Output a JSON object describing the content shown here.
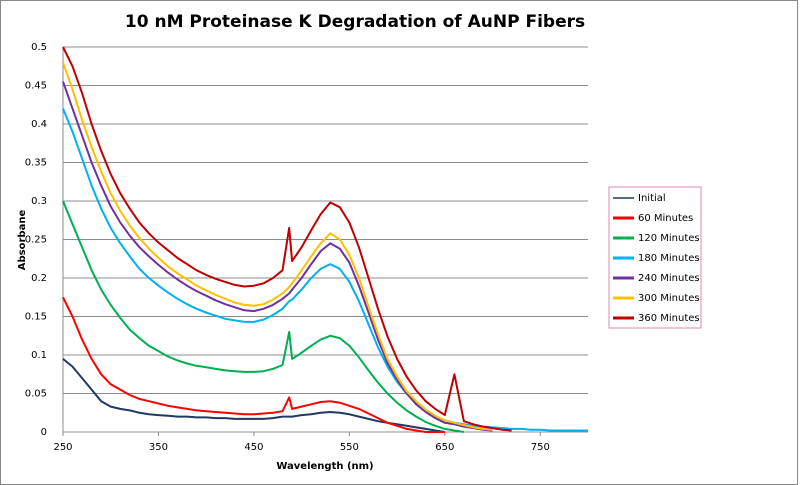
{
  "chart_data": {
    "type": "line",
    "title": "10 nM Proteinase K Degradation of AuNP Fibers",
    "x_label": "Wavelength (nm)",
    "y_label": "Absorbane",
    "x": [
      250,
      260,
      270,
      280,
      290,
      300,
      310,
      320,
      330,
      340,
      350,
      360,
      370,
      380,
      390,
      400,
      410,
      420,
      430,
      440,
      450,
      460,
      470,
      480,
      487,
      490,
      500,
      510,
      520,
      530,
      540,
      550,
      560,
      570,
      580,
      590,
      600,
      610,
      620,
      630,
      640,
      650,
      660,
      670,
      680,
      690,
      700,
      710,
      720,
      730,
      740,
      750,
      760,
      770,
      780,
      790,
      800
    ],
    "xlim": [
      250,
      800
    ],
    "xticks": [
      250,
      350,
      450,
      550,
      650,
      750
    ],
    "ylim": [
      0,
      0.5
    ],
    "yticks": [
      0,
      0.05,
      0.1,
      0.15,
      0.2,
      0.25,
      0.3,
      0.35,
      0.4,
      0.45,
      0.5
    ],
    "grid": true,
    "legend": "right",
    "series": [
      {
        "name": "Initial",
        "color": "#1f3864",
        "values": [
          0.095,
          0.085,
          0.07,
          0.055,
          0.04,
          0.033,
          0.03,
          0.028,
          0.025,
          0.023,
          0.022,
          0.021,
          0.02,
          0.02,
          0.019,
          0.019,
          0.018,
          0.018,
          0.017,
          0.017,
          0.017,
          0.017,
          0.018,
          0.02,
          0.02,
          0.02,
          0.022,
          0.023,
          0.025,
          0.026,
          0.025,
          0.023,
          0.02,
          0.017,
          0.014,
          0.012,
          0.01,
          0.008,
          0.006,
          0.004,
          0.002,
          0,
          null,
          null,
          null,
          null,
          null,
          null,
          null,
          null,
          null,
          null,
          null,
          null,
          null,
          null,
          null
        ]
      },
      {
        "name": "60 Minutes",
        "color": "#ff0000",
        "values": [
          0.175,
          0.15,
          0.12,
          0.095,
          0.075,
          0.062,
          0.055,
          0.048,
          0.043,
          0.04,
          0.037,
          0.034,
          0.032,
          0.03,
          0.028,
          0.027,
          0.026,
          0.025,
          0.024,
          0.023,
          0.023,
          0.024,
          0.025,
          0.027,
          0.045,
          0.03,
          0.033,
          0.036,
          0.039,
          0.04,
          0.038,
          0.034,
          0.03,
          0.024,
          0.018,
          0.012,
          0.008,
          0.004,
          0.002,
          0,
          0,
          0,
          null,
          null,
          null,
          null,
          null,
          null,
          null,
          null,
          null,
          null,
          null,
          null,
          null,
          null,
          null
        ]
      },
      {
        "name": "120 Minutes",
        "color": "#00b050",
        "values": [
          0.3,
          0.27,
          0.24,
          0.21,
          0.185,
          0.165,
          0.148,
          0.133,
          0.122,
          0.112,
          0.105,
          0.098,
          0.093,
          0.089,
          0.086,
          0.084,
          0.082,
          0.08,
          0.079,
          0.078,
          0.078,
          0.079,
          0.082,
          0.087,
          0.13,
          0.095,
          0.103,
          0.112,
          0.12,
          0.125,
          0.122,
          0.112,
          0.097,
          0.08,
          0.064,
          0.05,
          0.038,
          0.028,
          0.02,
          0.013,
          0.008,
          0.004,
          0.002,
          0,
          null,
          null,
          null,
          null,
          null,
          null,
          null,
          null,
          null,
          null,
          null,
          null,
          null
        ]
      },
      {
        "name": "180 Minutes",
        "color": "#00b0f0",
        "values": [
          0.42,
          0.39,
          0.355,
          0.32,
          0.29,
          0.265,
          0.245,
          0.228,
          0.212,
          0.2,
          0.19,
          0.181,
          0.173,
          0.166,
          0.16,
          0.155,
          0.151,
          0.147,
          0.145,
          0.143,
          0.143,
          0.146,
          0.152,
          0.16,
          0.17,
          0.172,
          0.185,
          0.2,
          0.212,
          0.218,
          0.212,
          0.195,
          0.17,
          0.14,
          0.11,
          0.085,
          0.065,
          0.05,
          0.038,
          0.028,
          0.02,
          0.015,
          0.012,
          0.01,
          0.008,
          0.007,
          0.006,
          0.005,
          0.004,
          0.004,
          0.003,
          0.003,
          0.002,
          0.002,
          0.002,
          0.002,
          0.002
        ]
      },
      {
        "name": "240 Minutes",
        "color": "#7030a0",
        "values": [
          0.455,
          0.42,
          0.385,
          0.35,
          0.32,
          0.293,
          0.272,
          0.255,
          0.24,
          0.228,
          0.217,
          0.207,
          0.198,
          0.19,
          0.183,
          0.177,
          0.171,
          0.166,
          0.162,
          0.158,
          0.157,
          0.16,
          0.165,
          0.173,
          0.18,
          0.185,
          0.2,
          0.218,
          0.235,
          0.245,
          0.238,
          0.22,
          0.19,
          0.155,
          0.12,
          0.09,
          0.068,
          0.05,
          0.036,
          0.026,
          0.018,
          0.012,
          0.01,
          0.007,
          0.005,
          0.003,
          0.002,
          null,
          null,
          null,
          null,
          null,
          null,
          null,
          null,
          null,
          null
        ]
      },
      {
        "name": "300 Minutes",
        "color": "#ffc000",
        "values": [
          0.48,
          0.445,
          0.405,
          0.37,
          0.338,
          0.31,
          0.287,
          0.268,
          0.252,
          0.238,
          0.226,
          0.215,
          0.206,
          0.198,
          0.19,
          0.184,
          0.178,
          0.173,
          0.168,
          0.165,
          0.164,
          0.166,
          0.172,
          0.18,
          0.188,
          0.193,
          0.21,
          0.228,
          0.245,
          0.258,
          0.25,
          0.23,
          0.2,
          0.163,
          0.127,
          0.095,
          0.072,
          0.053,
          0.04,
          0.029,
          0.021,
          0.015,
          0.012,
          0.009,
          0.006,
          0.004,
          0.003,
          null,
          null,
          null,
          null,
          null,
          null,
          null,
          null,
          null,
          null
        ]
      },
      {
        "name": "360 Minutes",
        "color": "#c00000",
        "values": [
          0.5,
          0.475,
          0.44,
          0.4,
          0.365,
          0.335,
          0.31,
          0.29,
          0.272,
          0.258,
          0.246,
          0.236,
          0.226,
          0.218,
          0.21,
          0.204,
          0.199,
          0.195,
          0.191,
          0.189,
          0.19,
          0.193,
          0.2,
          0.21,
          0.265,
          0.222,
          0.24,
          0.262,
          0.283,
          0.298,
          0.292,
          0.272,
          0.24,
          0.2,
          0.16,
          0.124,
          0.095,
          0.072,
          0.054,
          0.04,
          0.03,
          0.022,
          0.075,
          0.014,
          0.01,
          0.007,
          0.005,
          0.003,
          0.002,
          null,
          null,
          null,
          null,
          null,
          null,
          null,
          null
        ]
      }
    ]
  }
}
